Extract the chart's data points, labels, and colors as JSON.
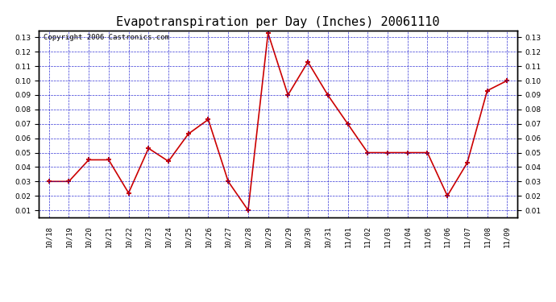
{
  "title": "Evapotranspiration per Day (Inches) 20061110",
  "copyright": "Copyright 2006 Castronics.com",
  "x_ticks": [
    "10/18",
    "10/19",
    "10/20",
    "10/21",
    "10/22",
    "10/23",
    "10/24",
    "10/25",
    "10/26",
    "10/27",
    "10/28",
    "10/29",
    "10/29",
    "10/30",
    "10/31",
    "11/01",
    "11/02",
    "11/03",
    "11/04",
    "11/05",
    "11/06",
    "11/07",
    "11/08",
    "11/09"
  ],
  "y_values": [
    0.03,
    0.03,
    0.045,
    0.045,
    0.022,
    0.053,
    0.044,
    0.063,
    0.073,
    0.03,
    0.01,
    0.133,
    0.09,
    0.113,
    0.09,
    0.07,
    0.05,
    0.05,
    0.05,
    0.05,
    0.02,
    0.043,
    0.093,
    0.1
  ],
  "line_color": "#cc0000",
  "marker": "+",
  "marker_size": 5,
  "line_width": 1.2,
  "marker_edge_width": 1.5,
  "ylim_min": 0.005,
  "ylim_max": 0.135,
  "yticks": [
    0.01,
    0.02,
    0.03,
    0.04,
    0.05,
    0.06,
    0.07,
    0.08,
    0.09,
    0.1,
    0.11,
    0.12,
    0.13
  ],
  "background_color": "#ffffff",
  "grid_color": "#0000cc",
  "title_fontsize": 11,
  "tick_fontsize": 6.5,
  "copyright_fontsize": 6.5,
  "border_color": "#000000"
}
